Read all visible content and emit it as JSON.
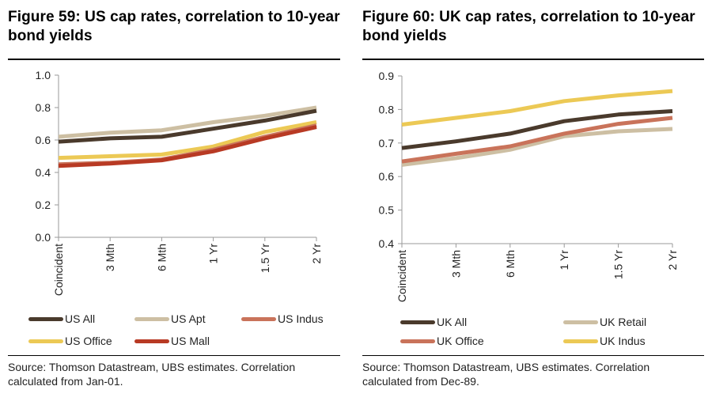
{
  "figures": [
    {
      "id": "us",
      "title": "Figure 59: US cap rates, correlation to 10-year bond yields",
      "source": "Source: Thomson Datastream, UBS estimates. Correlation calculated from Jan-01.",
      "legend": [
        {
          "name": "US All",
          "color": "#4a3a2c"
        },
        {
          "name": "US Apt",
          "color": "#cdbfa3"
        },
        {
          "name": "US Indus",
          "color": "#c9735a"
        },
        {
          "name": "US Office",
          "color": "#ecc955"
        },
        {
          "name": "US Mall",
          "color": "#b83a24"
        }
      ]
    },
    {
      "id": "uk",
      "title": "Figure 60: UK cap rates, correlation to 10-year bond yields",
      "source": "Source: Thomson Datastream, UBS estimates. Correlation calculated from Dec-89.",
      "legend": [
        {
          "name": "UK All",
          "color": "#4a3a2c"
        },
        {
          "name": "UK Retail",
          "color": "#cdbfa3"
        },
        {
          "name": "UK Office",
          "color": "#c9735a"
        },
        {
          "name": "UK Indus",
          "color": "#ecc955"
        }
      ]
    }
  ],
  "chart_data": [
    {
      "type": "line",
      "title": "Figure 59: US cap rates, correlation to 10-year bond yields",
      "xlabel": "",
      "ylabel": "",
      "categories": [
        "Coincident",
        "3 Mth",
        "6 Mth",
        "1 Yr",
        "1.5 Yr",
        "2 Yr"
      ],
      "ylim": [
        0.0,
        1.0
      ],
      "yticks": [
        "1.0",
        "0.8",
        "0.6",
        "0.4",
        "0.2",
        "0.0"
      ],
      "ytick_values": [
        1.0,
        0.8,
        0.6,
        0.4,
        0.2,
        0.0
      ],
      "grid": false,
      "legend_position": "bottom",
      "series": [
        {
          "name": "US Apt",
          "color": "#cdbfa3",
          "values": [
            0.62,
            0.645,
            0.66,
            0.71,
            0.75,
            0.8
          ]
        },
        {
          "name": "US All",
          "color": "#4a3a2c",
          "values": [
            0.59,
            0.61,
            0.62,
            0.67,
            0.72,
            0.78
          ]
        },
        {
          "name": "US Office",
          "color": "#ecc955",
          "values": [
            0.49,
            0.5,
            0.51,
            0.56,
            0.65,
            0.71
          ]
        },
        {
          "name": "US Indus",
          "color": "#c9735a",
          "values": [
            0.45,
            0.46,
            0.48,
            0.54,
            0.62,
            0.69
          ]
        },
        {
          "name": "US Mall",
          "color": "#b83a24",
          "values": [
            0.44,
            0.455,
            0.475,
            0.53,
            0.61,
            0.68
          ]
        }
      ]
    },
    {
      "type": "line",
      "title": "Figure 60: UK cap rates, correlation to 10-year bond yields",
      "xlabel": "",
      "ylabel": "",
      "categories": [
        "Coincident",
        "3 Mth",
        "6 Mth",
        "1 Yr",
        "1.5 Yr",
        "2 Yr"
      ],
      "ylim": [
        0.4,
        0.9
      ],
      "yticks": [
        "0.9",
        "0.8",
        "0.7",
        "0.6",
        "0.5",
        "0.4"
      ],
      "ytick_values": [
        0.9,
        0.8,
        0.7,
        0.6,
        0.5,
        0.4
      ],
      "grid": false,
      "legend_position": "bottom",
      "series": [
        {
          "name": "UK Indus",
          "color": "#ecc955",
          "values": [
            0.755,
            0.775,
            0.795,
            0.825,
            0.842,
            0.855
          ]
        },
        {
          "name": "UK All",
          "color": "#4a3a2c",
          "values": [
            0.685,
            0.705,
            0.728,
            0.765,
            0.785,
            0.795
          ]
        },
        {
          "name": "UK Retail",
          "color": "#cdbfa3",
          "values": [
            0.635,
            0.655,
            0.68,
            0.72,
            0.735,
            0.742
          ]
        },
        {
          "name": "UK Office",
          "color": "#c9735a",
          "values": [
            0.645,
            0.668,
            0.69,
            0.728,
            0.757,
            0.775
          ]
        }
      ]
    }
  ]
}
